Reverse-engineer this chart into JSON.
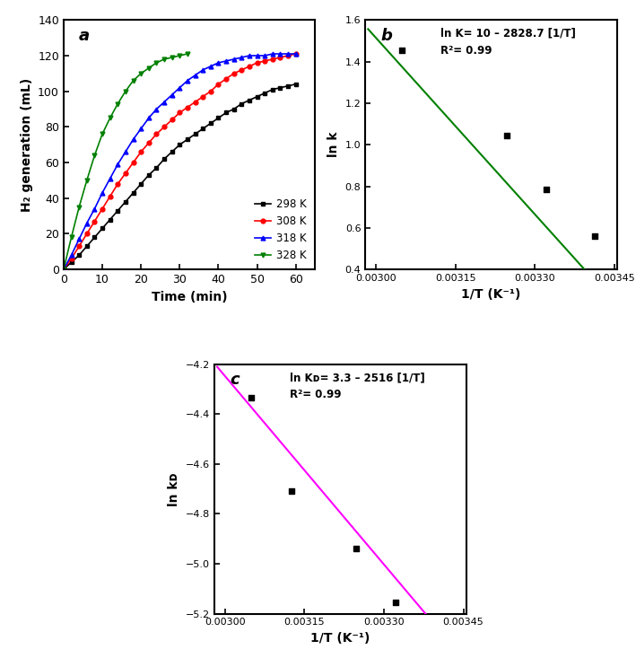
{
  "panel_a": {
    "label": "a",
    "xlabel": "Time (min)",
    "ylabel": "H₂ generation (mL)",
    "xlim": [
      0,
      65
    ],
    "ylim": [
      0,
      140
    ],
    "xticks": [
      0,
      10,
      20,
      30,
      40,
      50,
      60
    ],
    "yticks": [
      0,
      20,
      40,
      60,
      80,
      100,
      120,
      140
    ],
    "series": [
      {
        "label": "298 K",
        "color": "black",
        "marker": "s",
        "x": [
          0,
          2,
          4,
          6,
          8,
          10,
          12,
          14,
          16,
          18,
          20,
          22,
          24,
          26,
          28,
          30,
          32,
          34,
          36,
          38,
          40,
          42,
          44,
          46,
          48,
          50,
          52,
          54,
          56,
          58,
          60
        ],
        "y": [
          0,
          4,
          8,
          13,
          18,
          23,
          28,
          33,
          38,
          43,
          48,
          53,
          57,
          62,
          66,
          70,
          73,
          76,
          79,
          82,
          85,
          88,
          90,
          93,
          95,
          97,
          99,
          101,
          102,
          103,
          104
        ]
      },
      {
        "label": "308 K",
        "color": "red",
        "marker": "o",
        "x": [
          0,
          2,
          4,
          6,
          8,
          10,
          12,
          14,
          16,
          18,
          20,
          22,
          24,
          26,
          28,
          30,
          32,
          34,
          36,
          38,
          40,
          42,
          44,
          46,
          48,
          50,
          52,
          54,
          56,
          58,
          60
        ],
        "y": [
          0,
          6,
          13,
          20,
          27,
          34,
          41,
          48,
          54,
          60,
          66,
          71,
          76,
          80,
          84,
          88,
          91,
          94,
          97,
          100,
          104,
          107,
          110,
          112,
          114,
          116,
          117,
          118,
          119,
          120,
          121
        ]
      },
      {
        "label": "318 K",
        "color": "blue",
        "marker": "^",
        "x": [
          0,
          2,
          4,
          6,
          8,
          10,
          12,
          14,
          16,
          18,
          20,
          22,
          24,
          26,
          28,
          30,
          32,
          34,
          36,
          38,
          40,
          42,
          44,
          46,
          48,
          50,
          52,
          54,
          56,
          58,
          60
        ],
        "y": [
          0,
          8,
          17,
          26,
          34,
          43,
          51,
          59,
          66,
          73,
          79,
          85,
          90,
          94,
          98,
          102,
          106,
          109,
          112,
          114,
          116,
          117,
          118,
          119,
          120,
          120,
          120,
          121,
          121,
          121,
          121
        ]
      },
      {
        "label": "328 K",
        "color": "green",
        "marker": "v",
        "x": [
          0,
          2,
          4,
          6,
          8,
          10,
          12,
          14,
          16,
          18,
          20,
          22,
          24,
          26,
          28,
          30,
          32
        ],
        "y": [
          0,
          18,
          35,
          50,
          64,
          76,
          85,
          93,
          100,
          106,
          110,
          113,
          116,
          118,
          119,
          120,
          121
        ]
      }
    ]
  },
  "panel_b": {
    "label": "b",
    "xlabel": "1/T (K⁻¹)",
    "ylabel": "ln k",
    "xlim": [
      0.00298,
      0.003455
    ],
    "ylim": [
      0.4,
      1.6
    ],
    "xticks": [
      0.003,
      0.00315,
      0.0033,
      0.00345
    ],
    "yticks": [
      0.4,
      0.6,
      0.8,
      1.0,
      1.2,
      1.4,
      1.6
    ],
    "scatter_x": [
      0.003049,
      0.003247,
      0.003322,
      0.003413
    ],
    "scatter_y": [
      1.455,
      1.045,
      0.785,
      0.56
    ],
    "line_color": "green",
    "line_x": [
      0.002985,
      0.00343
    ],
    "line_intercept": 10.0,
    "line_slope": -2828.7,
    "annotation": "ln K= 10 – 2828.7 [1/T]\nR²= 0.99"
  },
  "panel_c": {
    "label": "c",
    "xlabel": "1/T (K⁻¹)",
    "ylabel": "ln kᴅ",
    "xlim": [
      0.00298,
      0.003455
    ],
    "ylim": [
      -5.2,
      -4.2
    ],
    "xticks": [
      0.003,
      0.00315,
      0.0033,
      0.00345
    ],
    "yticks": [
      -5.2,
      -5.0,
      -4.8,
      -4.6,
      -4.4,
      -4.2
    ],
    "scatter_x": [
      0.003049,
      0.003125,
      0.003247,
      0.003322
    ],
    "scatter_y": [
      -4.335,
      -4.71,
      -4.94,
      -5.155
    ],
    "line_color": "magenta",
    "line_x": [
      0.002985,
      0.00343
    ],
    "line_intercept": 3.3,
    "line_slope": -2516.0,
    "annotation": "ln Kᴅ= 3.3 – 2516 [1/T]\nR²= 0.99"
  }
}
